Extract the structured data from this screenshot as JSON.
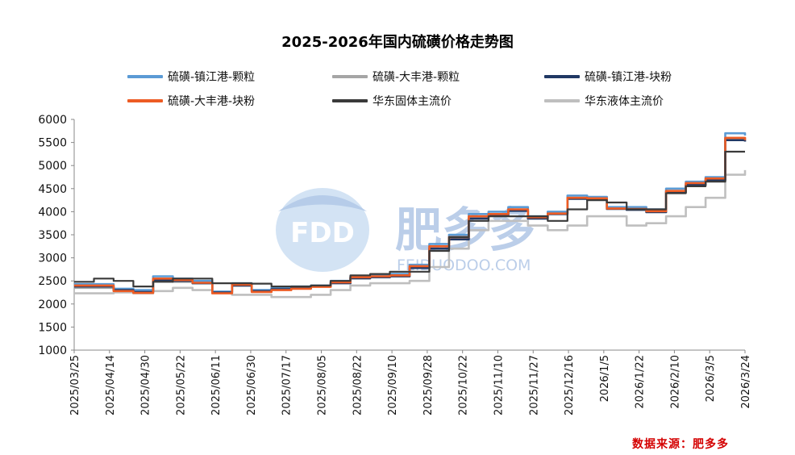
{
  "chart_data": {
    "type": "line",
    "title": "2025-2026年国内硫磺价格走势图",
    "ylim": [
      1000,
      6000
    ],
    "yticks": [
      1000,
      1500,
      2000,
      2500,
      3000,
      3500,
      4000,
      4500,
      5000,
      5500,
      6000
    ],
    "xticks": [
      "2025/03/25",
      "2025/04/14",
      "2025/04/30",
      "2025/05/22",
      "2025/06/11",
      "2025/06/30",
      "2025/07/17",
      "2025/08/05",
      "2025/08/22",
      "2025/09/10",
      "2025/09/28",
      "2025/10/22",
      "2025/11/10",
      "2025/11/27",
      "2025/12/16",
      "2026/1/5",
      "2026/1/22",
      "2026/2/10",
      "2026/3/5",
      "2026/3/24"
    ],
    "series": [
      {
        "name": "硫磺-镇江港-颗粒",
        "color": "#5b9bd5",
        "values": [
          2430,
          2430,
          2330,
          2300,
          2600,
          2550,
          2500,
          2270,
          2450,
          2300,
          2350,
          2380,
          2400,
          2500,
          2600,
          2620,
          2650,
          2850,
          3300,
          3500,
          3950,
          4000,
          4100,
          3900,
          4000,
          4350,
          4320,
          4100,
          4100,
          4050,
          4500,
          4650,
          4750,
          5700,
          5650
        ]
      },
      {
        "name": "硫磺-大丰港-颗粒",
        "color": "#a5a5a5",
        "values": [
          2350,
          2350,
          2300,
          2250,
          2500,
          2480,
          2450,
          2250,
          2400,
          2280,
          2320,
          2350,
          2380,
          2460,
          2550,
          2580,
          2600,
          2800,
          3250,
          3450,
          3880,
          3950,
          4050,
          3880,
          3950,
          4300,
          4280,
          4080,
          4050,
          4000,
          4450,
          4600,
          4700,
          5600,
          5580
        ]
      },
      {
        "name": "硫磺-镇江港-块粉",
        "color": "#203864",
        "values": [
          2380,
          2380,
          2300,
          2260,
          2520,
          2500,
          2450,
          2250,
          2400,
          2280,
          2320,
          2340,
          2380,
          2450,
          2560,
          2580,
          2600,
          2780,
          3200,
          3400,
          3850,
          3920,
          4020,
          3850,
          3950,
          4280,
          4260,
          4060,
          4040,
          3990,
          4420,
          4580,
          4680,
          5550,
          5520
        ]
      },
      {
        "name": "硫磺-大丰港-块粉",
        "color": "#ed5c24",
        "values": [
          2400,
          2400,
          2280,
          2240,
          2550,
          2520,
          2460,
          2230,
          2420,
          2260,
          2300,
          2330,
          2370,
          2470,
          2580,
          2600,
          2620,
          2820,
          3250,
          3450,
          3900,
          3950,
          4050,
          3880,
          3960,
          4300,
          4290,
          4070,
          4060,
          4010,
          4450,
          4620,
          4720,
          5600,
          5550
        ]
      },
      {
        "name": "华东固体主流价",
        "color": "#3a3a3a",
        "values": [
          2480,
          2550,
          2500,
          2380,
          2480,
          2550,
          2550,
          2450,
          2450,
          2440,
          2380,
          2380,
          2400,
          2500,
          2620,
          2650,
          2700,
          2700,
          3150,
          3450,
          3800,
          3900,
          3900,
          3900,
          3800,
          4050,
          4250,
          4200,
          4050,
          4050,
          4400,
          4550,
          4650,
          5300,
          5300
        ]
      },
      {
        "name": "华东液体主流价",
        "color": "#bfbfbf",
        "values": [
          2230,
          2230,
          2250,
          2230,
          2280,
          2350,
          2300,
          2250,
          2200,
          2200,
          2150,
          2150,
          2200,
          2300,
          2400,
          2450,
          2450,
          2500,
          2800,
          3200,
          3600,
          3800,
          3800,
          3700,
          3600,
          3700,
          3900,
          3900,
          3700,
          3750,
          3900,
          4100,
          4300,
          4800,
          4900
        ]
      }
    ],
    "legend_position": "top",
    "grid": false
  },
  "source_text": "数据来源：肥多多",
  "watermark": {
    "brand": "FDD",
    "name": "肥多多",
    "site": "FEIDUODOO.COM"
  }
}
